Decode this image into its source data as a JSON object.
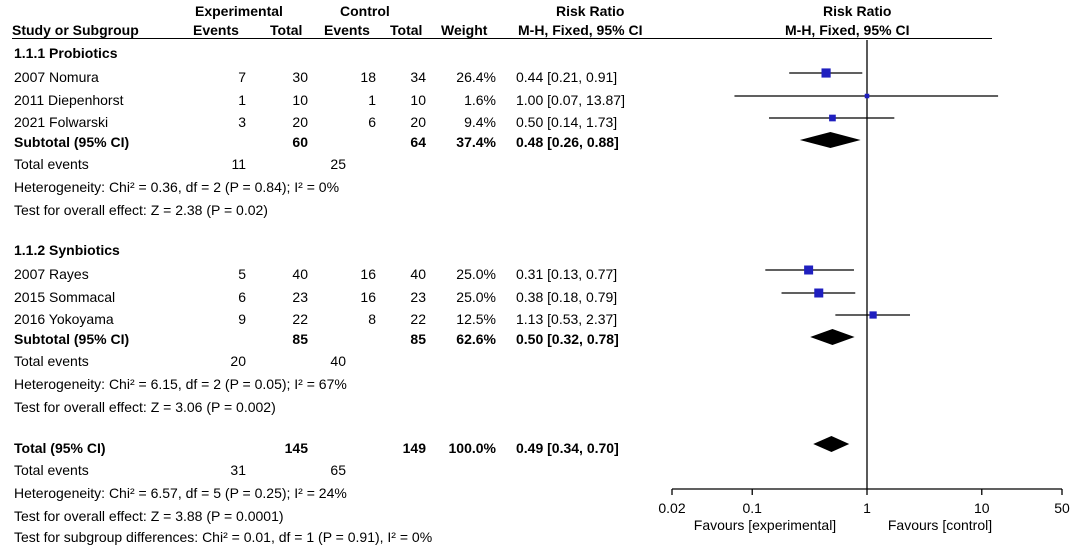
{
  "header": {
    "experimental": "Experimental",
    "control": "Control",
    "risk_ratio_col": "Risk Ratio",
    "risk_ratio_plot": "Risk Ratio",
    "study": "Study or Subgroup",
    "events_e": "Events",
    "total_e": "Total",
    "events_c": "Events",
    "total_c": "Total",
    "weight": "Weight",
    "method_col": "M-H, Fixed, 95% CI",
    "method_plot": "M-H, Fixed, 95% CI"
  },
  "groups": [
    {
      "title": "1.1.1 Probiotics",
      "studies": [
        {
          "name": "2007 Nomura",
          "ee": "7",
          "te": "30",
          "ec": "18",
          "tc": "34",
          "w": "26.4%",
          "ci": "0.44 [0.21, 0.91]"
        },
        {
          "name": "2011 Diepenhorst",
          "ee": "1",
          "te": "10",
          "ec": "1",
          "tc": "10",
          "w": "1.6%",
          "ci": "1.00 [0.07, 13.87]"
        },
        {
          "name": "2021 Folwarski",
          "ee": "3",
          "te": "20",
          "ec": "6",
          "tc": "20",
          "w": "9.4%",
          "ci": "0.50 [0.14, 1.73]"
        }
      ],
      "subtotal": {
        "name": "Subtotal (95% CI)",
        "te": "60",
        "tc": "64",
        "w": "37.4%",
        "ci": "0.48 [0.26, 0.88]"
      },
      "events": {
        "label": "Total events",
        "e": "11",
        "c": "25"
      },
      "het": "Heterogeneity: Chi² = 0.36, df = 2 (P = 0.84); I² = 0%",
      "test": "Test for overall effect: Z = 2.38 (P = 0.02)"
    },
    {
      "title": "1.1.2 Synbiotics",
      "studies": [
        {
          "name": "2007 Rayes",
          "ee": "5",
          "te": "40",
          "ec": "16",
          "tc": "40",
          "w": "25.0%",
          "ci": "0.31 [0.13, 0.77]"
        },
        {
          "name": "2015 Sommacal",
          "ee": "6",
          "te": "23",
          "ec": "16",
          "tc": "23",
          "w": "25.0%",
          "ci": "0.38 [0.18, 0.79]"
        },
        {
          "name": "2016 Yokoyama",
          "ee": "9",
          "te": "22",
          "ec": "8",
          "tc": "22",
          "w": "12.5%",
          "ci": "1.13 [0.53, 2.37]"
        }
      ],
      "subtotal": {
        "name": "Subtotal (95% CI)",
        "te": "85",
        "tc": "85",
        "w": "62.6%",
        "ci": "0.50 [0.32, 0.78]"
      },
      "events": {
        "label": "Total events",
        "e": "20",
        "c": "40"
      },
      "het": "Heterogeneity: Chi² = 6.15, df = 2 (P = 0.05); I² = 67%",
      "test": "Test for overall effect: Z = 3.06 (P = 0.002)"
    }
  ],
  "total": {
    "name": "Total (95% CI)",
    "te": "145",
    "tc": "149",
    "w": "100.0%",
    "ci": "0.49 [0.34, 0.70]",
    "events": {
      "label": "Total events",
      "e": "31",
      "c": "65"
    },
    "het": "Heterogeneity: Chi² = 6.57, df = 5 (P = 0.25); I² = 24%",
    "test": "Test for overall effect: Z = 3.88 (P = 0.0001)",
    "subgroup": "Test for subgroup differences: Chi² = 0.01, df = 1 (P = 0.91), I² = 0%"
  },
  "axis": {
    "ticks": [
      "0.02",
      "0.1",
      "1",
      "10",
      "50"
    ],
    "favours_left": "Favours [experimental]",
    "favours_right": "Favours [control]"
  },
  "chart_data": {
    "type": "forest",
    "scale": "log",
    "xlim": [
      0.02,
      50
    ],
    "null_line": 1,
    "marker_color": "#1f1fbf",
    "studies": [
      {
        "name": "2007 Nomura",
        "rr": 0.44,
        "lo": 0.21,
        "hi": 0.91,
        "weight": 26.4
      },
      {
        "name": "2011 Diepenhorst",
        "rr": 1.0,
        "lo": 0.07,
        "hi": 13.87,
        "weight": 1.6
      },
      {
        "name": "2021 Folwarski",
        "rr": 0.5,
        "lo": 0.14,
        "hi": 1.73,
        "weight": 9.4
      },
      {
        "name": "2007 Rayes",
        "rr": 0.31,
        "lo": 0.13,
        "hi": 0.77,
        "weight": 25.0
      },
      {
        "name": "2015 Sommacal",
        "rr": 0.38,
        "lo": 0.18,
        "hi": 0.79,
        "weight": 25.0
      },
      {
        "name": "2016 Yokoyama",
        "rr": 1.13,
        "lo": 0.53,
        "hi": 2.37,
        "weight": 12.5
      }
    ],
    "diamonds": [
      {
        "name": "Subtotal (95% CI) Probiotics",
        "rr": 0.48,
        "lo": 0.26,
        "hi": 0.88
      },
      {
        "name": "Subtotal (95% CI) Synbiotics",
        "rr": 0.5,
        "lo": 0.32,
        "hi": 0.78
      },
      {
        "name": "Total (95% CI)",
        "rr": 0.49,
        "lo": 0.34,
        "hi": 0.7
      }
    ]
  }
}
